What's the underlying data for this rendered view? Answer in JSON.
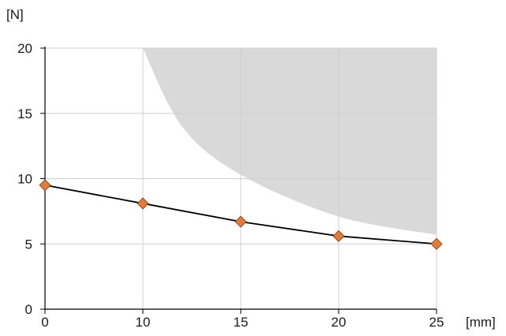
{
  "chart_data": {
    "type": "line",
    "title": "",
    "xlabel": "[mm]",
    "ylabel": "[N]",
    "x_ticks": [
      "0",
      "10",
      "15",
      "20",
      "25"
    ],
    "y_ticks": [
      "0",
      "5",
      "10",
      "15",
      "20"
    ],
    "ylim": [
      0,
      20
    ],
    "grid": true,
    "series": [
      {
        "x": [
          0,
          10,
          15,
          20,
          25
        ],
        "values": [
          9.5,
          8.1,
          6.7,
          5.6,
          5.0
        ],
        "color": "#000000",
        "marker": "diamond",
        "marker_color": "#e07b39"
      }
    ],
    "shaded_region": {
      "color": "#d9d9d9",
      "boundary_x": [
        10,
        12,
        15,
        20,
        25
      ],
      "boundary_y": [
        20,
        14,
        10.3,
        7.1,
        5.7
      ]
    }
  }
}
